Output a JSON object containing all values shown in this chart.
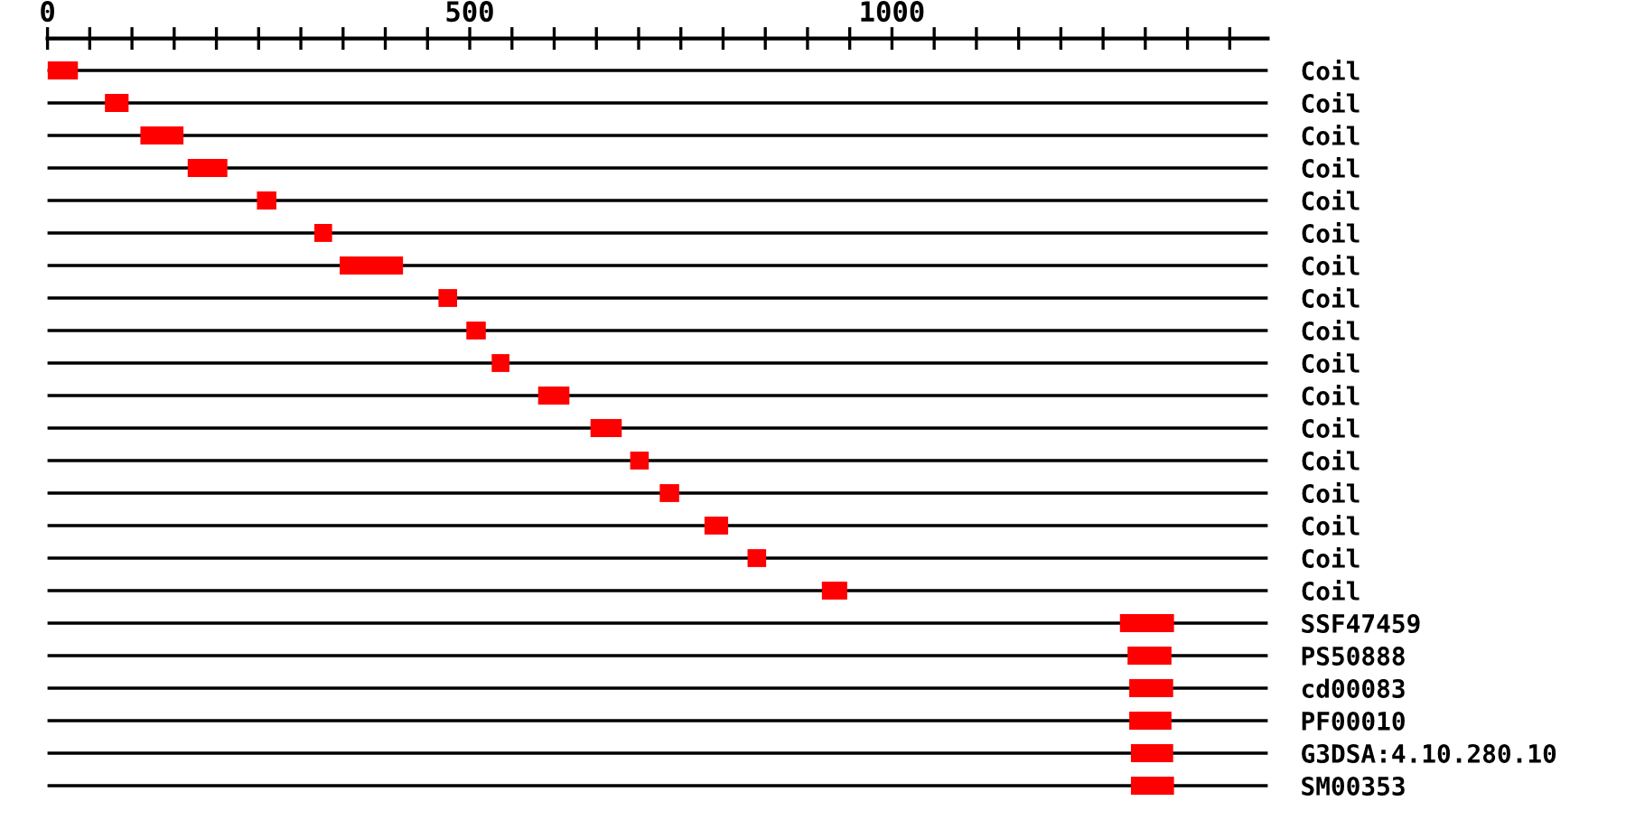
{
  "chart_data": {
    "type": "bar",
    "orientation": "horizontal",
    "grid": "y",
    "legend": false,
    "categories": [
      "Coil",
      "Coil",
      "Coil",
      "Coil",
      "Coil",
      "Coil",
      "Coil",
      "Coil",
      "Coil",
      "Coil",
      "Coil",
      "Coil",
      "Coil",
      "Coil",
      "Coil",
      "Coil",
      "Coil",
      "SSF47459",
      "PS50888",
      "cd00083",
      "PF00010",
      "G3DSA:4.10.280.10",
      "SM00353"
    ],
    "base": [
      0,
      68,
      110,
      166,
      248,
      316,
      346,
      463,
      496,
      526,
      581,
      643,
      690,
      725,
      778,
      829,
      917,
      1270,
      1279,
      1281,
      1281,
      1283,
      1283
    ],
    "values": [
      36,
      28,
      51,
      47,
      23,
      21,
      75,
      22,
      23,
      21,
      37,
      37,
      22,
      23,
      28,
      22,
      30,
      64,
      52,
      52,
      50,
      50,
      51
    ],
    "color": "#ff0000",
    "xlim": [
      0,
      1445
    ],
    "xticks": [
      0,
      {
        "value": 50,
        "label": null
      },
      {
        "value": 100,
        "label": null
      },
      {
        "value": 150,
        "label": null
      },
      {
        "value": 200,
        "label": null
      },
      {
        "value": 250,
        "label": null
      },
      {
        "value": 300,
        "label": null
      },
      {
        "value": 350,
        "label": null
      },
      {
        "value": 400,
        "label": null
      },
      {
        "value": 450,
        "label": null
      },
      500,
      {
        "value": 550,
        "label": null
      },
      {
        "value": 600,
        "label": null
      },
      {
        "value": 650,
        "label": null
      },
      {
        "value": 700,
        "label": null
      },
      {
        "value": 750,
        "label": null
      },
      {
        "value": 800,
        "label": null
      },
      {
        "value": 850,
        "label": null
      },
      {
        "value": 900,
        "label": null
      },
      {
        "value": 950,
        "label": null
      },
      1000,
      {
        "value": 1050,
        "label": null
      },
      {
        "value": 1100,
        "label": null
      },
      {
        "value": 1150,
        "label": null
      },
      {
        "value": 1200,
        "label": null
      },
      {
        "value": 1250,
        "label": null
      },
      {
        "value": 1300,
        "label": null
      },
      {
        "value": 1350,
        "label": null
      },
      {
        "value": 1400,
        "label": null
      }
    ]
  }
}
